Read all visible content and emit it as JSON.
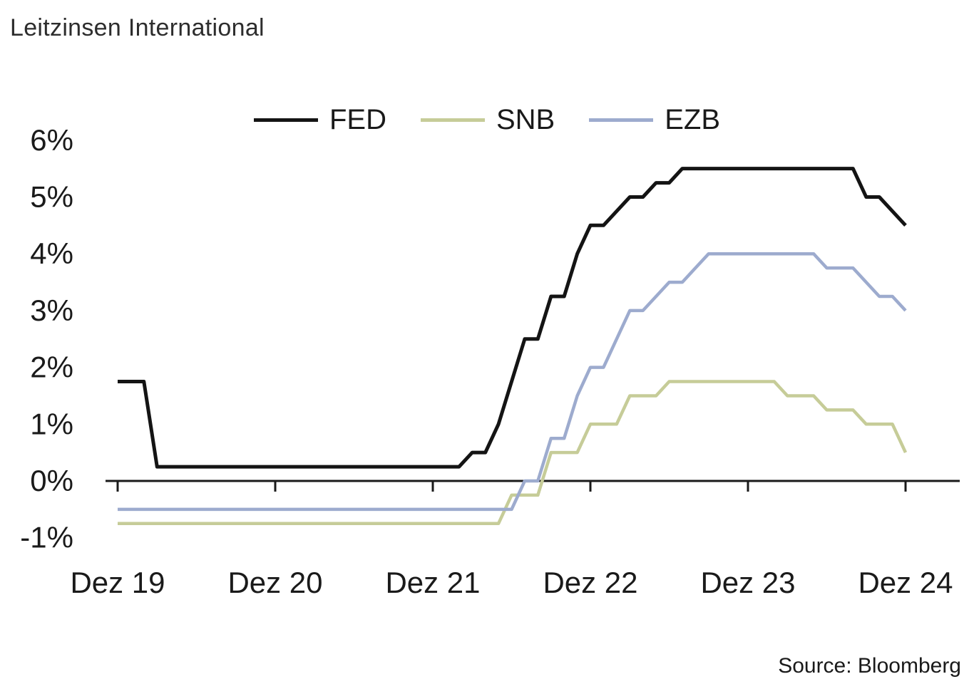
{
  "title": "Leitzinsen International",
  "source": "Source: Bloomberg",
  "chart_data": {
    "type": "line",
    "title": "Leitzinsen International",
    "x_axis": {
      "tick_labels": [
        "Dez 19",
        "Dez 20",
        "Dez 21",
        "Dez 22",
        "Dez 23",
        "Dez 24"
      ],
      "tick_month_indices": [
        0,
        12,
        24,
        36,
        48,
        60
      ],
      "unit": "monthly, Dez 2019 - Dez 2024"
    },
    "y_axis": {
      "tick_labels": [
        "6%",
        "5%",
        "4%",
        "3%",
        "2%",
        "1%",
        "0%",
        "-1%"
      ],
      "tick_values": [
        6,
        5,
        4,
        3,
        2,
        1,
        0,
        -1
      ],
      "range": [
        -1.3,
        6.4
      ],
      "unit": "percent"
    },
    "grid": false,
    "legend_position": "top-center",
    "series": [
      {
        "name": "FED",
        "color": "#141414",
        "values": [
          1.75,
          1.75,
          1.75,
          0.25,
          0.25,
          0.25,
          0.25,
          0.25,
          0.25,
          0.25,
          0.25,
          0.25,
          0.25,
          0.25,
          0.25,
          0.25,
          0.25,
          0.25,
          0.25,
          0.25,
          0.25,
          0.25,
          0.25,
          0.25,
          0.25,
          0.25,
          0.25,
          0.5,
          0.5,
          1.0,
          1.75,
          2.5,
          2.5,
          3.25,
          3.25,
          4.0,
          4.5,
          4.5,
          4.75,
          5.0,
          5.0,
          5.25,
          5.25,
          5.5,
          5.5,
          5.5,
          5.5,
          5.5,
          5.5,
          5.5,
          5.5,
          5.5,
          5.5,
          5.5,
          5.5,
          5.5,
          5.5,
          5.0,
          5.0,
          4.75,
          4.5
        ]
      },
      {
        "name": "SNB",
        "color": "#c6cc98",
        "values": [
          -0.75,
          -0.75,
          -0.75,
          -0.75,
          -0.75,
          -0.75,
          -0.75,
          -0.75,
          -0.75,
          -0.75,
          -0.75,
          -0.75,
          -0.75,
          -0.75,
          -0.75,
          -0.75,
          -0.75,
          -0.75,
          -0.75,
          -0.75,
          -0.75,
          -0.75,
          -0.75,
          -0.75,
          -0.75,
          -0.75,
          -0.75,
          -0.75,
          -0.75,
          -0.75,
          -0.25,
          -0.25,
          -0.25,
          0.5,
          0.5,
          0.5,
          1.0,
          1.0,
          1.0,
          1.5,
          1.5,
          1.5,
          1.75,
          1.75,
          1.75,
          1.75,
          1.75,
          1.75,
          1.75,
          1.75,
          1.75,
          1.5,
          1.5,
          1.5,
          1.25,
          1.25,
          1.25,
          1.0,
          1.0,
          1.0,
          0.5
        ]
      },
      {
        "name": "EZB",
        "color": "#9dabce",
        "values": [
          -0.5,
          -0.5,
          -0.5,
          -0.5,
          -0.5,
          -0.5,
          -0.5,
          -0.5,
          -0.5,
          -0.5,
          -0.5,
          -0.5,
          -0.5,
          -0.5,
          -0.5,
          -0.5,
          -0.5,
          -0.5,
          -0.5,
          -0.5,
          -0.5,
          -0.5,
          -0.5,
          -0.5,
          -0.5,
          -0.5,
          -0.5,
          -0.5,
          -0.5,
          -0.5,
          -0.5,
          0.0,
          0.0,
          0.75,
          0.75,
          1.5,
          2.0,
          2.0,
          2.5,
          3.0,
          3.0,
          3.25,
          3.5,
          3.5,
          3.75,
          4.0,
          4.0,
          4.0,
          4.0,
          4.0,
          4.0,
          4.0,
          4.0,
          4.0,
          3.75,
          3.75,
          3.75,
          3.5,
          3.25,
          3.25,
          3.0
        ]
      }
    ]
  }
}
